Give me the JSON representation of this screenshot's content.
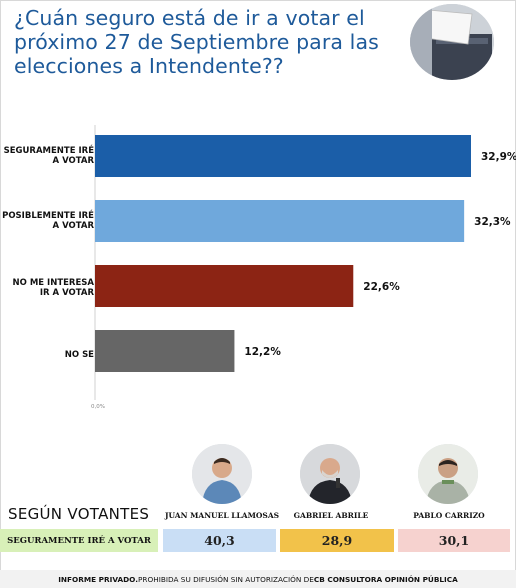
{
  "title": "¿Cuán seguro está de ir a votar el próximo 27 de Septiembre para las elecciones a Intendente??",
  "chart_data": {
    "type": "bar",
    "orientation": "horizontal",
    "categories": [
      "SEGURAMENTE IRÉ A VOTAR",
      "POSIBLEMENTE IRÉ A VOTAR",
      "NO ME INTERESA IR A VOTAR",
      "NO SE"
    ],
    "values": [
      32.9,
      32.3,
      22.6,
      12.2
    ],
    "value_labels": [
      "32,9%",
      "32,3%",
      "22,6%",
      "12,2%"
    ],
    "bar_colors": [
      "#1b5ea8",
      "#6fa8dc",
      "#8c2414",
      "#666666"
    ],
    "axis_min": 0,
    "axis_max": 35,
    "axis_tick_label": "0,0%"
  },
  "section_title": "SEGÚN VOTANTES",
  "candidates": [
    {
      "name": "JUAN MANUEL LLAMOSAS",
      "icon": "person-photo-icon"
    },
    {
      "name": "GABRIEL ABRILE",
      "icon": "person-photo-icon"
    },
    {
      "name": "PABLO CARRIZO",
      "icon": "person-photo-icon"
    }
  ],
  "voter_row": {
    "label": "SEGURAMENTE IRÉ A VOTAR",
    "values": [
      "40,3",
      "28,9",
      "30,1"
    ]
  },
  "footer": {
    "bold_prefix": "INFORME PRIVADO.",
    "text": " PROHIBIDA SU DIFUSIÓN SIN AUTORIZACIÓN DE ",
    "bold_suffix": "CB CONSULTORA OPINIÓN PÚBLICA"
  }
}
